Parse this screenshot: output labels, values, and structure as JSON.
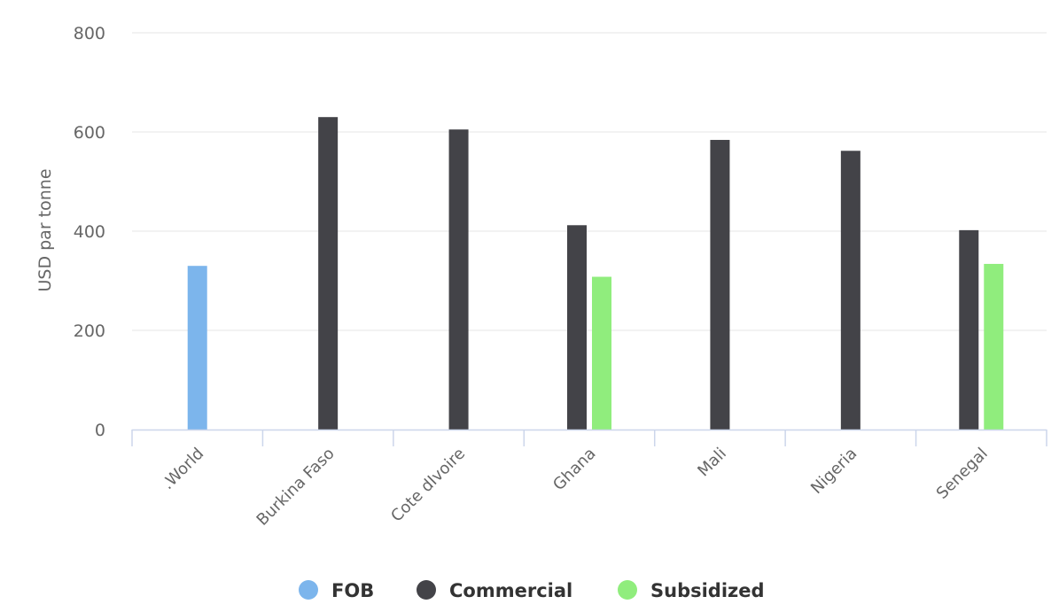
{
  "chart_data": {
    "type": "bar",
    "ylabel": "USD par tonne",
    "xlabel": "",
    "ylim": [
      0,
      800
    ],
    "yticks": [
      0,
      200,
      400,
      600,
      800
    ],
    "grid": true,
    "legend_position": "bottom-center",
    "categories": [
      ".World",
      "Burkina Faso",
      "Cote dIvoire",
      "Ghana",
      "Mali",
      "Nigeria",
      "Senegal"
    ],
    "series": [
      {
        "name": "FOB",
        "color": "#7cb5ec",
        "values": [
          330,
          null,
          null,
          null,
          null,
          null,
          null
        ]
      },
      {
        "name": "Commercial",
        "color": "#434348",
        "values": [
          null,
          630,
          605,
          412,
          584,
          562,
          402
        ]
      },
      {
        "name": "Subsidized",
        "color": "#90ed7d",
        "values": [
          null,
          null,
          null,
          308,
          null,
          null,
          334
        ]
      }
    ]
  }
}
